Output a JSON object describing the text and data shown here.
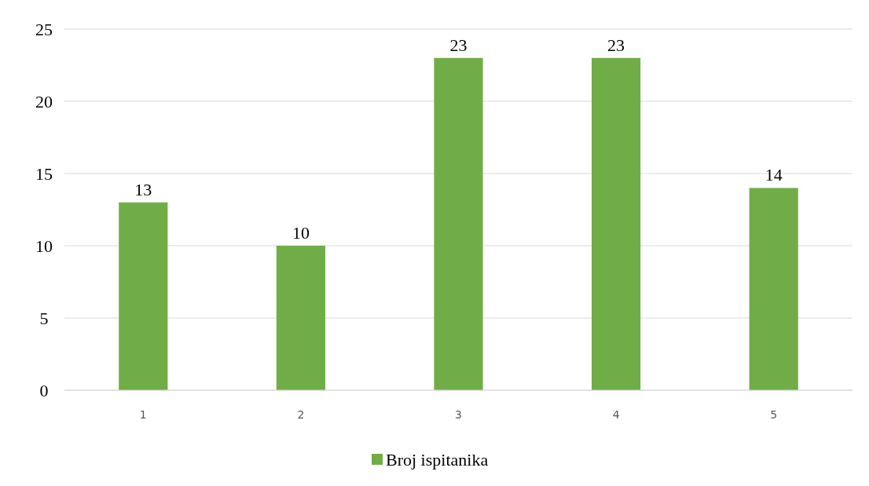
{
  "chart_data": {
    "type": "bar",
    "categories": [
      "1",
      "2",
      "3",
      "4",
      "5"
    ],
    "series": [
      {
        "name": "Broj ispitanika",
        "color": "#70ad47",
        "values": [
          13,
          10,
          23,
          23,
          14
        ]
      }
    ],
    "ylim": [
      0,
      25
    ],
    "yticks": [
      0,
      5,
      10,
      15,
      20,
      25
    ],
    "grid": "y",
    "data_labels": true,
    "legend": "bottom"
  }
}
